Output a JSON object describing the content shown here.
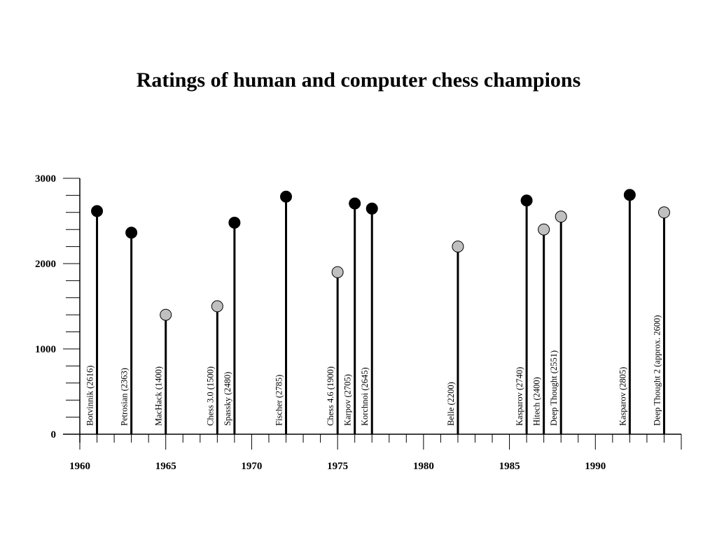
{
  "chart_data": {
    "type": "scatter",
    "title": "Ratings of human and computer chess champions",
    "xlim": [
      1960,
      1995
    ],
    "ylim": [
      0,
      3000
    ],
    "x_ticks": [
      1960,
      1965,
      1970,
      1975,
      1980,
      1985,
      1990
    ],
    "y_ticks": [
      0,
      1000,
      2000,
      3000
    ],
    "grid": false,
    "series": [
      {
        "color": "#000000",
        "points": [
          {
            "x": 1961,
            "y": 2616,
            "label": "Botvinnik (2616)"
          },
          {
            "x": 1963,
            "y": 2363,
            "label": "Petrosian (2363)"
          },
          {
            "x": 1969,
            "y": 2480,
            "label": "Spassky (2480)"
          },
          {
            "x": 1972,
            "y": 2785,
            "label": "Fischer (2785)"
          },
          {
            "x": 1976,
            "y": 2705,
            "label": "Karpov (2705)"
          },
          {
            "x": 1977,
            "y": 2645,
            "label": "Korchnoi (2645)"
          },
          {
            "x": 1986,
            "y": 2740,
            "label": "Kasparov (2740)"
          },
          {
            "x": 1992,
            "y": 2805,
            "label": "Kasparov (2805)"
          }
        ]
      },
      {
        "color": "#c0c0c0",
        "points": [
          {
            "x": 1965,
            "y": 1400,
            "label": "MacHack (1400)"
          },
          {
            "x": 1968,
            "y": 1500,
            "label": "Chess 3.0 (1500)"
          },
          {
            "x": 1975,
            "y": 1900,
            "label": "Chess 4.6 (1900)"
          },
          {
            "x": 1982,
            "y": 2200,
            "label": "Belle (2200)"
          },
          {
            "x": 1987,
            "y": 2400,
            "label": "Hitech (2400)"
          },
          {
            "x": 1988,
            "y": 2551,
            "label": "Deep Thought (2551)"
          },
          {
            "x": 1994,
            "y": 2600,
            "label": "Deep Thought 2 (approx. 2600)"
          }
        ]
      }
    ]
  }
}
